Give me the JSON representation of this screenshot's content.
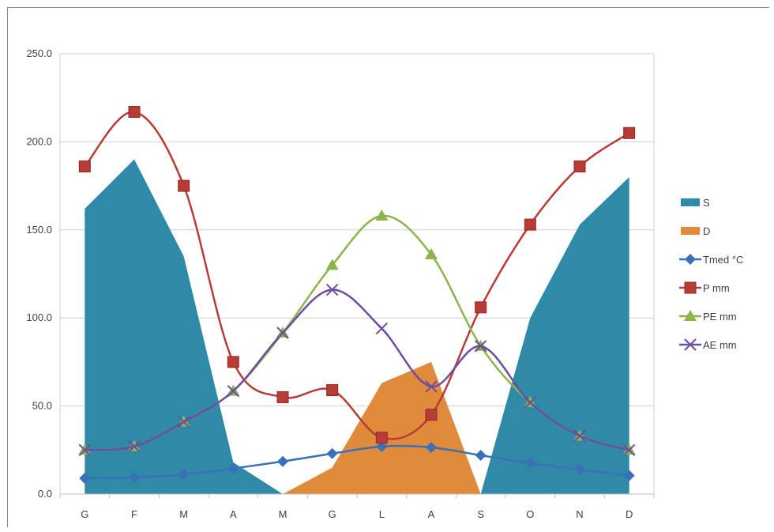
{
  "chart_data": {
    "type": "area",
    "categories": [
      "G",
      "F",
      "M",
      "A",
      "M",
      "G",
      "L",
      "A",
      "S",
      "O",
      "N",
      "D"
    ],
    "ylim": [
      0,
      250
    ],
    "yticks": [
      "0.0",
      "50.0",
      "100.0",
      "150.0",
      "200.0",
      "250.0"
    ],
    "grid": true,
    "legend_position": "right",
    "series": [
      {
        "name": "S",
        "kind": "area",
        "color": "#2e8aa6",
        "values": [
          162,
          190,
          135,
          18,
          0,
          null,
          null,
          null,
          0,
          100,
          153,
          180
        ]
      },
      {
        "name": "D",
        "kind": "area",
        "color": "#e08a3c",
        "values": [
          null,
          null,
          null,
          null,
          0,
          15,
          63,
          75,
          0,
          null,
          null,
          null
        ]
      },
      {
        "name": "Tmed °C",
        "kind": "line",
        "marker": "diamond",
        "color": "#3a70b8",
        "values": [
          9,
          9.5,
          11,
          14.5,
          18.5,
          23,
          27,
          26.5,
          22,
          17.5,
          14,
          10.5
        ]
      },
      {
        "name": "P mm",
        "kind": "line",
        "marker": "square",
        "color": "#b83b35",
        "values": [
          186,
          217,
          175,
          75,
          55,
          59,
          32,
          45,
          106,
          153,
          186,
          205
        ]
      },
      {
        "name": "PE mm",
        "kind": "line",
        "marker": "triangle",
        "color": "#8bb54a",
        "values": [
          25,
          27,
          41,
          58.5,
          91.5,
          130,
          158,
          136,
          84,
          52,
          33,
          25
        ]
      },
      {
        "name": "AE mm",
        "kind": "line",
        "marker": "cross",
        "color": "#6e4da0",
        "values": [
          25,
          27,
          41,
          58.5,
          91.5,
          116,
          94,
          61,
          84,
          52,
          33,
          25
        ]
      }
    ]
  }
}
